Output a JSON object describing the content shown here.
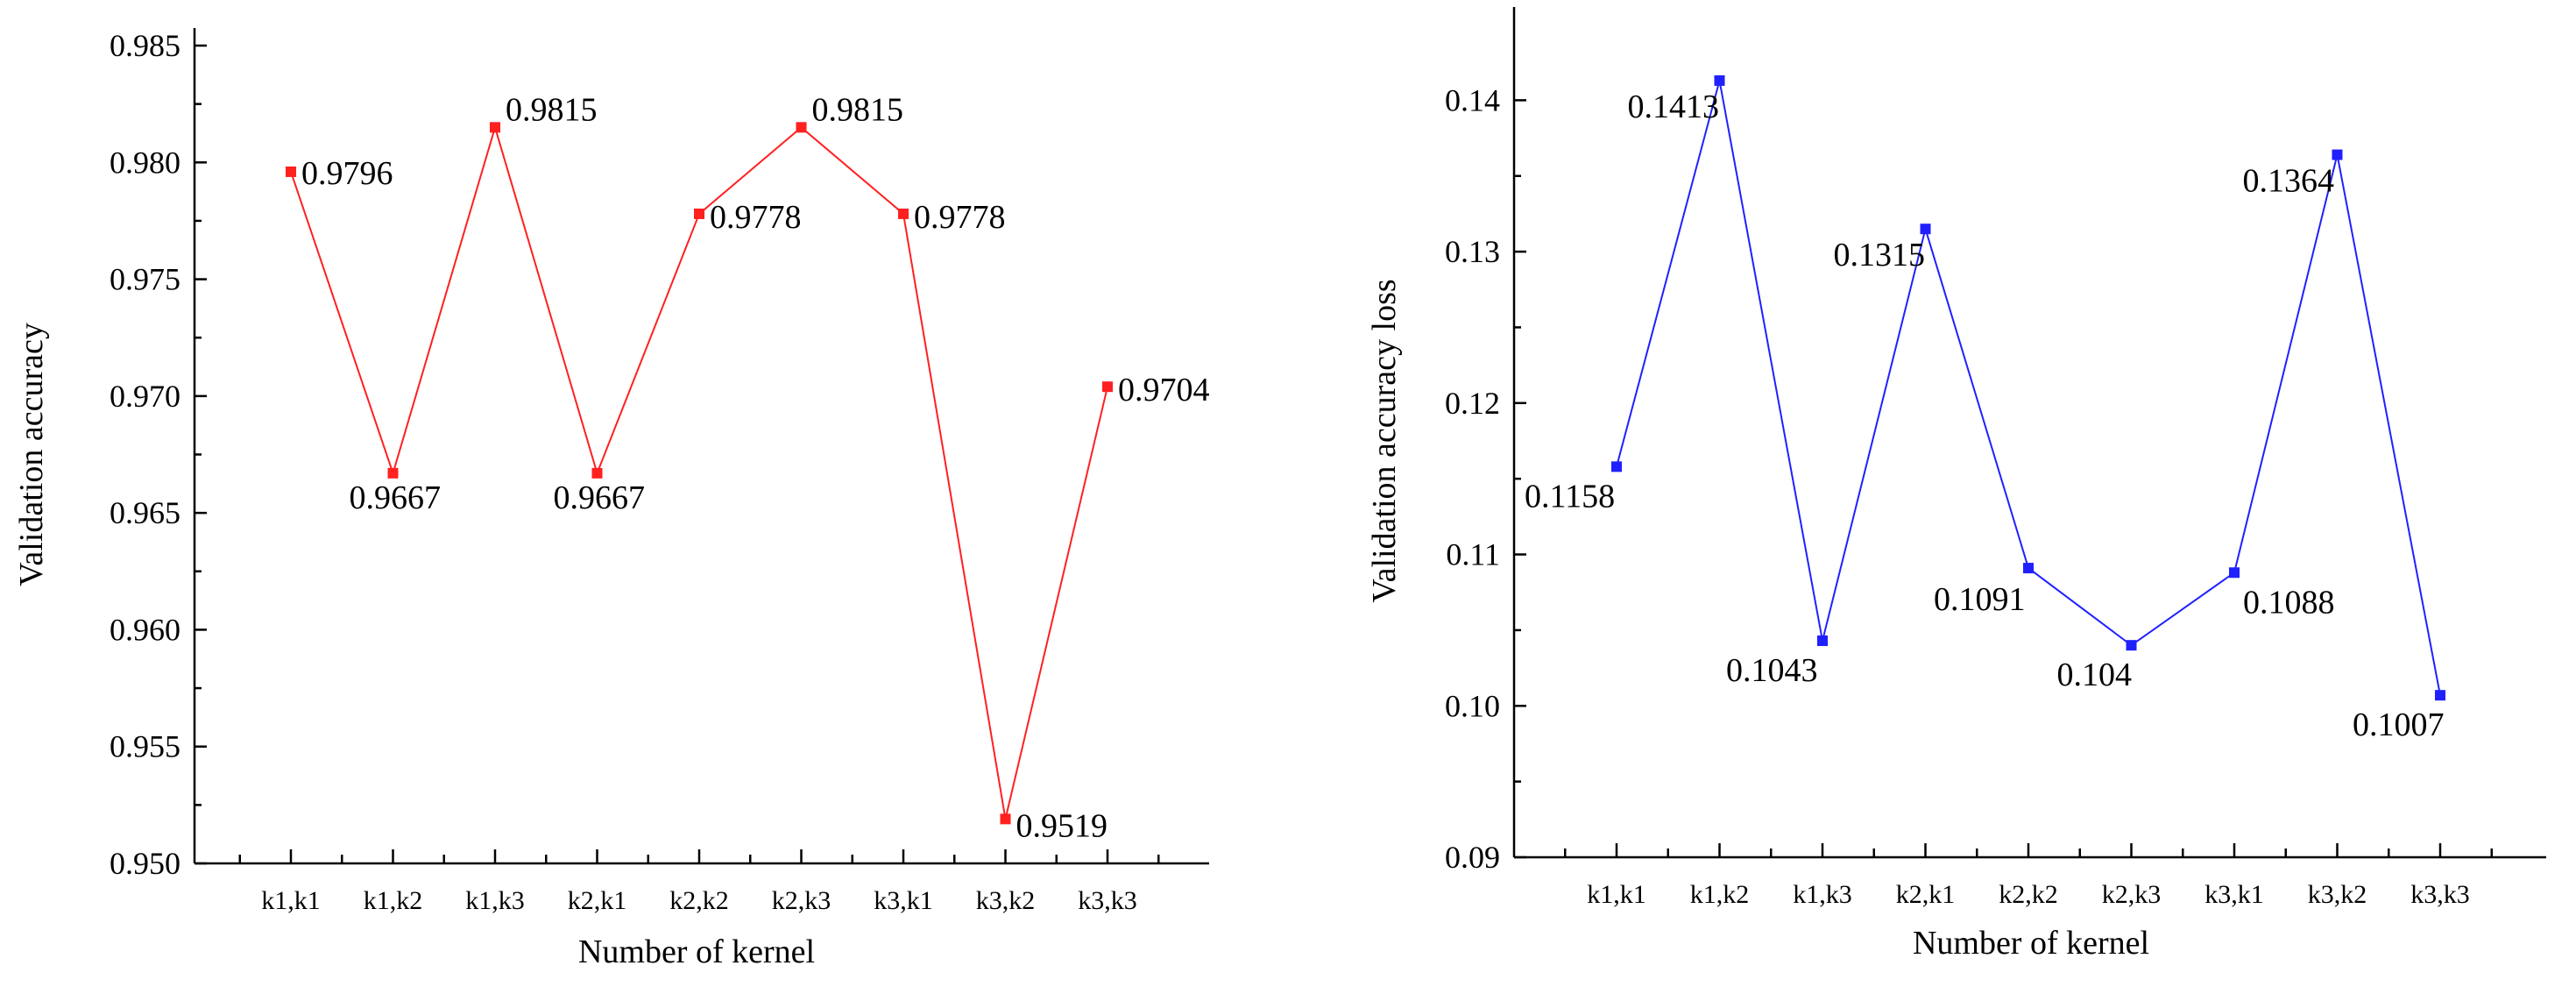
{
  "chart_data": [
    {
      "type": "line",
      "xlabel": "Number of kernel",
      "ylabel": "Validation accuracy",
      "categories": [
        "k1,k1",
        "k1,k2",
        "k1,k3",
        "k2,k1",
        "k2,k2",
        "k2,k3",
        "k3,k1",
        "k3,k2",
        "k3,k3"
      ],
      "values": [
        0.9796,
        0.9667,
        0.9815,
        0.9667,
        0.9778,
        0.9815,
        0.9778,
        0.9519,
        0.9704
      ],
      "data_labels": [
        "0.9796",
        "0.9667",
        "0.9815",
        "0.9667",
        "0.9778",
        "0.9815",
        "0.9778",
        "0.9519",
        "0.9704"
      ],
      "ylim": [
        0.95,
        0.985
      ],
      "yticks": [
        "0.950",
        "0.955",
        "0.960",
        "0.965",
        "0.970",
        "0.975",
        "0.980",
        "0.985"
      ],
      "color": "#ff2020",
      "grid": false,
      "legend": "none"
    },
    {
      "type": "line",
      "xlabel": "Number of kernel",
      "ylabel": "Validation accuracy loss",
      "categories": [
        "k1,k1",
        "k1,k2",
        "k1,k3",
        "k2,k1",
        "k2,k2",
        "k2,k3",
        "k3,k1",
        "k3,k2",
        "k3,k3"
      ],
      "values": [
        0.1158,
        0.1413,
        0.1043,
        0.1315,
        0.1091,
        0.104,
        0.1088,
        0.1364,
        0.1007
      ],
      "data_labels": [
        "0.1158",
        "0.1413",
        "0.1043",
        "0.1315",
        "0.1091",
        "0.104",
        "0.1088",
        "0.1364",
        "0.1007"
      ],
      "ylim": [
        0.09,
        0.145
      ],
      "yticks": [
        "0.09",
        "0.10",
        "0.11",
        "0.12",
        "0.13",
        "0.14"
      ],
      "color": "#2020ff",
      "grid": false,
      "legend": "none"
    }
  ]
}
